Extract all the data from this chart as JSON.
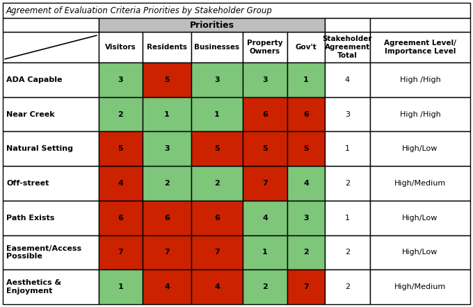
{
  "title": "Agreement of Evaluation Criteria Priorities by Stakeholder Group",
  "priorities_header": "Priorities",
  "col_headers": [
    "Visitors",
    "Residents",
    "Businesses",
    "Property\nOwners",
    "Gov't",
    "Stakeholder\nAgreement\nTotal",
    "Agreement Level/\nImportance Level"
  ],
  "row_labels": [
    "ADA Capable",
    "Near Creek",
    "Natural Setting",
    "Off-street",
    "Path Exists",
    "Easement/Access\nPossible",
    "Aesthetics &\nEnjoyment"
  ],
  "values": [
    [
      3,
      5,
      3,
      3,
      1,
      4,
      "High /High"
    ],
    [
      2,
      1,
      1,
      6,
      6,
      3,
      "High /High"
    ],
    [
      5,
      3,
      5,
      5,
      5,
      1,
      "High/Low"
    ],
    [
      4,
      2,
      2,
      7,
      4,
      2,
      "High/Medium"
    ],
    [
      6,
      6,
      6,
      4,
      3,
      1,
      "High/Low"
    ],
    [
      7,
      7,
      7,
      1,
      2,
      2,
      "High/Low"
    ],
    [
      1,
      4,
      4,
      2,
      7,
      2,
      "High/Medium"
    ]
  ],
  "cell_colors": [
    [
      "green",
      "red",
      "green",
      "green",
      "green"
    ],
    [
      "green",
      "green",
      "green",
      "red",
      "red"
    ],
    [
      "red",
      "green",
      "red",
      "red",
      "red"
    ],
    [
      "red",
      "green",
      "green",
      "red",
      "green"
    ],
    [
      "red",
      "red",
      "red",
      "green",
      "green"
    ],
    [
      "red",
      "red",
      "red",
      "green",
      "green"
    ],
    [
      "green",
      "red",
      "red",
      "green",
      "red"
    ]
  ],
  "green_color": "#7DC67A",
  "red_color": "#CC2200",
  "gray_header": "#BEBEBE",
  "title_fontsize": 8.5,
  "header_fontsize": 7.5,
  "cell_fontsize": 8,
  "label_fontsize": 8
}
